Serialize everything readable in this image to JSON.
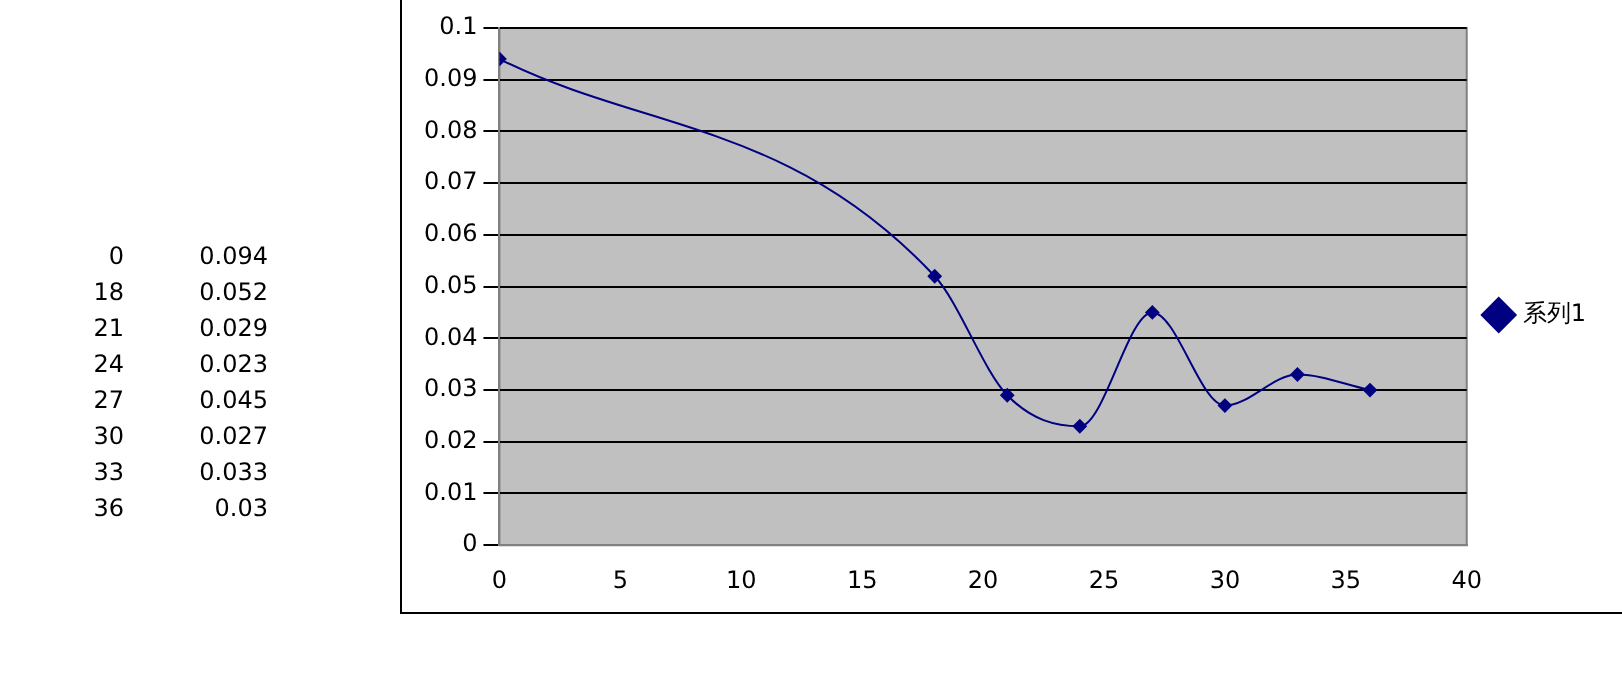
{
  "chart_data": {
    "type": "line",
    "x": [
      0,
      18,
      21,
      24,
      27,
      30,
      33,
      36
    ],
    "series": [
      {
        "name": "系列1",
        "color": "#000080",
        "values": [
          0.094,
          0.052,
          0.029,
          0.023,
          0.045,
          0.027,
          0.033,
          0.03
        ]
      }
    ],
    "xlim": [
      0,
      40
    ],
    "xticks": [
      0,
      5,
      10,
      15,
      20,
      25,
      30,
      35,
      40
    ],
    "ylim": [
      0,
      0.1
    ],
    "yticks": [
      0,
      0.01,
      0.02,
      0.03,
      0.04,
      0.05,
      0.06,
      0.07,
      0.08,
      0.09,
      0.1
    ],
    "annotations": [
      "0",
      "0.094",
      "18",
      "0.052",
      "21",
      "0.029",
      "24",
      "0.023",
      "27",
      "0.045",
      "30",
      "0.027",
      "33",
      "0.033",
      "36",
      "0.03"
    ],
    "grid": "y",
    "legend": "right",
    "marker": "diamond",
    "line_style": "solid"
  }
}
